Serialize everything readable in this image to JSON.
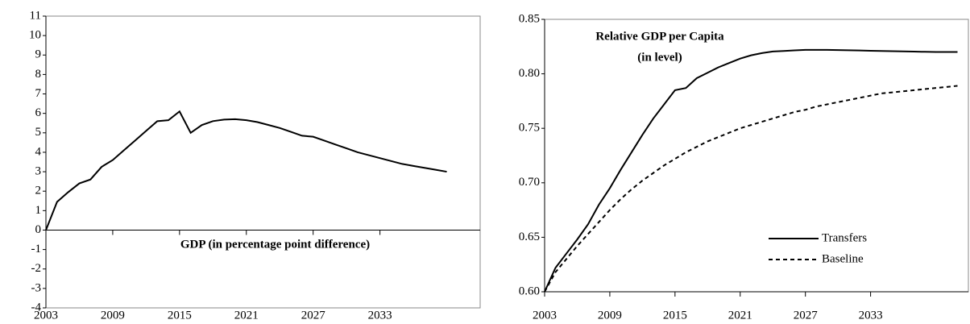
{
  "chart_data": [
    {
      "type": "line",
      "annotation": "GDP (in percentage point difference)",
      "x": [
        2003,
        2004,
        2005,
        2006,
        2007,
        2008,
        2009,
        2010,
        2011,
        2012,
        2013,
        2014,
        2015,
        2016,
        2017,
        2018,
        2019,
        2020,
        2021,
        2022,
        2023,
        2024,
        2025,
        2026,
        2027,
        2028,
        2029,
        2030,
        2031,
        2032,
        2033,
        2034,
        2035,
        2036,
        2037,
        2038,
        2039
      ],
      "values": [
        0,
        1.45,
        1.95,
        2.4,
        2.6,
        3.25,
        3.6,
        4.1,
        4.6,
        5.1,
        5.6,
        5.65,
        6.1,
        5.0,
        5.4,
        5.6,
        5.68,
        5.7,
        5.65,
        5.55,
        5.4,
        5.25,
        5.05,
        4.85,
        4.8,
        4.6,
        4.4,
        4.2,
        4.0,
        3.85,
        3.7,
        3.55,
        3.4,
        3.3,
        3.2,
        3.1,
        3.0
      ],
      "color": "#000000",
      "xlim": [
        2003,
        2042
      ],
      "xticks": [
        2003,
        2009,
        2015,
        2021,
        2027,
        2033
      ],
      "ylim": [
        -4,
        11
      ],
      "yticks": [
        -4,
        -3,
        -2,
        -1,
        0,
        1,
        2,
        3,
        4,
        5,
        6,
        7,
        8,
        9,
        10,
        11
      ],
      "grid": false
    },
    {
      "type": "line",
      "title": "Relative GDP per Capita",
      "subtitle": "(in level)",
      "x": [
        2003,
        2004,
        2005,
        2006,
        2007,
        2008,
        2009,
        2010,
        2011,
        2012,
        2013,
        2014,
        2015,
        2016,
        2017,
        2018,
        2019,
        2020,
        2021,
        2022,
        2023,
        2024,
        2025,
        2026,
        2027,
        2028,
        2029,
        2030,
        2031,
        2032,
        2033,
        2034,
        2035,
        2036,
        2037,
        2038,
        2039,
        2040,
        2041
      ],
      "series": [
        {
          "name": "Transfers",
          "color": "#000000",
          "style": "solid",
          "values": [
            0.6,
            0.622,
            0.635,
            0.648,
            0.662,
            0.68,
            0.695,
            0.712,
            0.728,
            0.744,
            0.759,
            0.772,
            0.785,
            0.787,
            0.796,
            0.801,
            0.806,
            0.81,
            0.814,
            0.817,
            0.819,
            0.8205,
            0.821,
            0.8215,
            0.822,
            0.822,
            0.822,
            0.8218,
            0.8216,
            0.8214,
            0.8212,
            0.821,
            0.8208,
            0.8206,
            0.8204,
            0.8202,
            0.82,
            0.82,
            0.82
          ]
        },
        {
          "name": "Baseline",
          "color": "#000000",
          "style": "dashed",
          "values": [
            0.6,
            0.618,
            0.63,
            0.642,
            0.653,
            0.664,
            0.675,
            0.685,
            0.694,
            0.702,
            0.709,
            0.716,
            0.722,
            0.728,
            0.733,
            0.738,
            0.742,
            0.746,
            0.75,
            0.753,
            0.756,
            0.759,
            0.762,
            0.765,
            0.767,
            0.77,
            0.772,
            0.774,
            0.776,
            0.778,
            0.78,
            0.782,
            0.783,
            0.784,
            0.785,
            0.786,
            0.787,
            0.788,
            0.789
          ]
        }
      ],
      "xlim": [
        2003,
        2042
      ],
      "xticks": [
        2003,
        2009,
        2015,
        2021,
        2027,
        2033
      ],
      "ylim": [
        0.6,
        0.85
      ],
      "yticks": [
        {
          "value": 0.6,
          "label": "0.60"
        },
        {
          "value": 0.65,
          "label": "0.65"
        },
        {
          "value": 0.7,
          "label": "0.70"
        },
        {
          "value": 0.75,
          "label": "0.75"
        },
        {
          "value": 0.8,
          "label": "0.80"
        },
        {
          "value": 0.85,
          "label": "0.85"
        }
      ],
      "grid": false,
      "legend": "lower center"
    }
  ]
}
